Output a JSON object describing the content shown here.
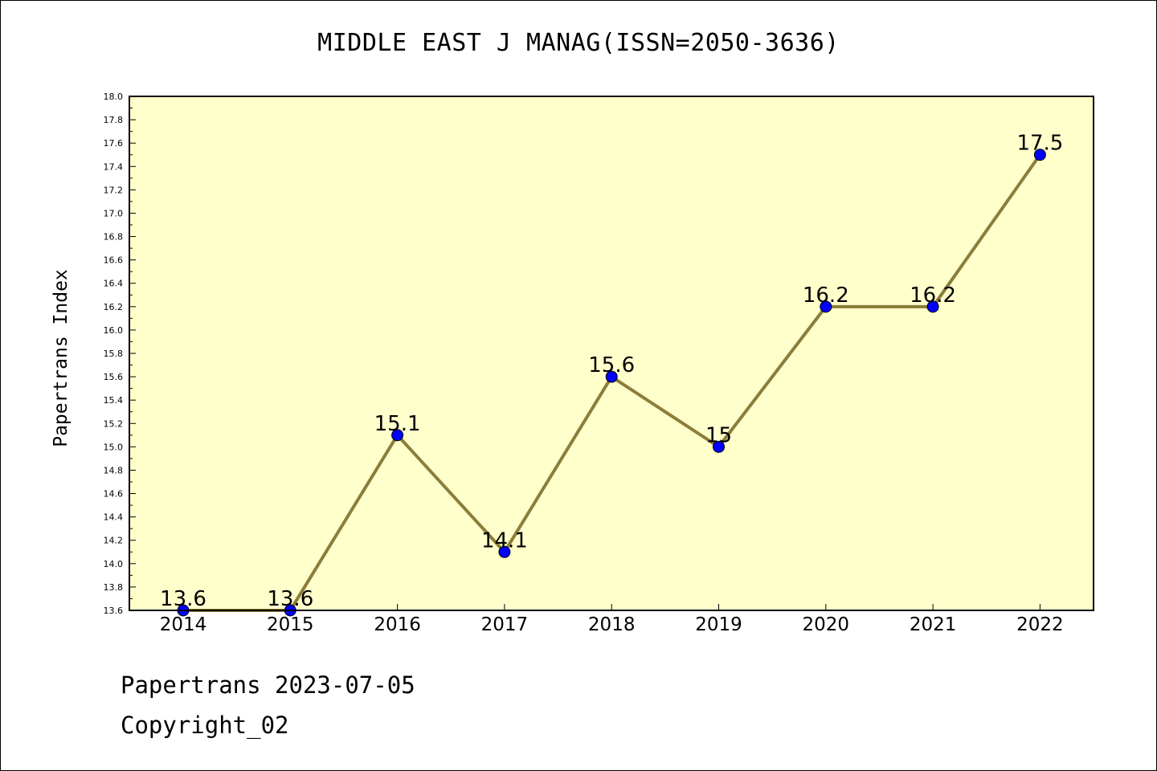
{
  "chart_data": {
    "type": "line",
    "title": "MIDDLE EAST J MANAG(ISSN=2050-3636)",
    "xlabel": "",
    "ylabel": "Papertrans Index",
    "x": [
      "2014",
      "2015",
      "2016",
      "2017",
      "2018",
      "2019",
      "2020",
      "2021",
      "2022"
    ],
    "series": [
      {
        "values": [
          13.6,
          13.6,
          15.1,
          14.1,
          15.6,
          15.0,
          16.2,
          16.2,
          17.5
        ],
        "labels": [
          "13.6",
          "13.6",
          "15.1",
          "14.1",
          "15.6",
          "15",
          "16.2",
          "16.2",
          "17.5"
        ]
      }
    ],
    "ylim": [
      13.6,
      18.0
    ],
    "y_ticks": [
      "13.6",
      "13.8",
      "14.0",
      "14.2",
      "14.4",
      "14.6",
      "14.8",
      "15.0",
      "15.2",
      "15.4",
      "15.6",
      "15.8",
      "16.0",
      "16.2",
      "16.4",
      "16.6",
      "16.8",
      "17.0",
      "17.2",
      "17.4",
      "17.6",
      "17.8",
      "18.0"
    ],
    "grid": false,
    "legend": "none",
    "colors": {
      "plot_background": "#ffffcc",
      "line": "#8b7d3a",
      "marker": "#0000ff"
    }
  },
  "footer": {
    "line1": "Papertrans 2023-07-05",
    "line2": "Copyright_02"
  }
}
